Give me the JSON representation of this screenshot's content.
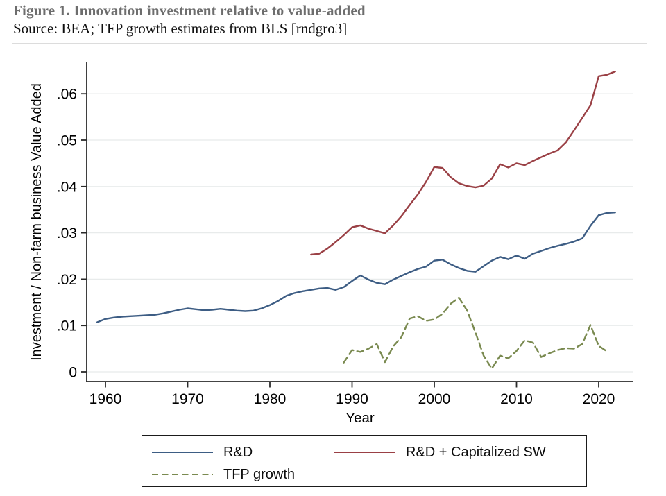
{
  "header": {
    "title": "Figure 1. Innovation investment relative to value-added",
    "source": "Source: BEA; TFP growth estimates from BLS [rndgro3]"
  },
  "chart_data": {
    "type": "line",
    "title": "",
    "xlabel": "Year",
    "ylabel": "Investment / Non-farm business Value Added",
    "x_ticks": [
      1960,
      1970,
      1980,
      1990,
      2000,
      2010,
      2020
    ],
    "y_ticks": [
      {
        "v": 0,
        "label": "0"
      },
      {
        "v": 0.01,
        "label": ".01"
      },
      {
        "v": 0.02,
        "label": ".02"
      },
      {
        "v": 0.03,
        "label": ".03"
      },
      {
        "v": 0.04,
        "label": ".04"
      },
      {
        "v": 0.05,
        "label": ".05"
      },
      {
        "v": 0.06,
        "label": ".06"
      }
    ],
    "x_range": [
      1957.7,
      2024.1
    ],
    "y_range": [
      0,
      0.067
    ],
    "grid": "horizontal-light",
    "legend_position": "bottom-box",
    "colors": {
      "grid": "#e8ebeb",
      "axis": "#2a2a2a",
      "figure_border": "#dcdcdc",
      "title_gray": "#6d6d6d"
    },
    "series": [
      {
        "name": "R&D",
        "color": "#3d5d84",
        "style": "solid",
        "start_year": 1959,
        "end_year": 2022,
        "values": [
          0.0107,
          0.0114,
          0.0117,
          0.0119,
          0.012,
          0.0121,
          0.0122,
          0.0123,
          0.0126,
          0.013,
          0.0134,
          0.0137,
          0.0135,
          0.0133,
          0.0134,
          0.0136,
          0.0134,
          0.0132,
          0.0131,
          0.0132,
          0.0137,
          0.0144,
          0.0153,
          0.0164,
          0.017,
          0.0174,
          0.0177,
          0.018,
          0.0181,
          0.0177,
          0.0183,
          0.0196,
          0.0208,
          0.0199,
          0.0192,
          0.0189,
          0.0199,
          0.0207,
          0.0215,
          0.0222,
          0.0227,
          0.024,
          0.0242,
          0.0232,
          0.0224,
          0.0218,
          0.0216,
          0.0228,
          0.024,
          0.0248,
          0.0243,
          0.0251,
          0.0244,
          0.0255,
          0.0261,
          0.0267,
          0.0272,
          0.0276,
          0.0281,
          0.0288,
          0.0315,
          0.0338,
          0.0343,
          0.0344
        ]
      },
      {
        "name": "R&D + Capitalized SW",
        "color": "#9a4045",
        "style": "solid",
        "start_year": 1985,
        "end_year": 2022,
        "values": [
          0.0253,
          0.0255,
          0.0266,
          0.028,
          0.0295,
          0.0312,
          0.0316,
          0.0309,
          0.0304,
          0.0299,
          0.0316,
          0.0336,
          0.036,
          0.0383,
          0.041,
          0.0442,
          0.044,
          0.042,
          0.0407,
          0.0401,
          0.0398,
          0.0402,
          0.0417,
          0.0448,
          0.0441,
          0.045,
          0.0446,
          0.0455,
          0.0463,
          0.0471,
          0.0478,
          0.0495,
          0.0521,
          0.0548,
          0.0575,
          0.0638,
          0.0641,
          0.0648
        ]
      },
      {
        "name": "TFP growth",
        "color": "#7a8a50",
        "style": "dashed",
        "start_year": 1989,
        "end_year": 2021,
        "values": [
          0.002,
          0.0047,
          0.0043,
          0.005,
          0.006,
          0.0021,
          0.0055,
          0.0075,
          0.0115,
          0.012,
          0.011,
          0.0113,
          0.0125,
          0.0147,
          0.016,
          0.0132,
          0.0085,
          0.0035,
          0.0007,
          0.0035,
          0.0029,
          0.0045,
          0.0068,
          0.0063,
          0.0032,
          0.004,
          0.0047,
          0.0051,
          0.005,
          0.006,
          0.0101,
          0.0056,
          0.0044
        ]
      }
    ]
  },
  "legend": {
    "entries": [
      "R&D",
      "R&D + Capitalized SW",
      "TFP growth"
    ]
  }
}
